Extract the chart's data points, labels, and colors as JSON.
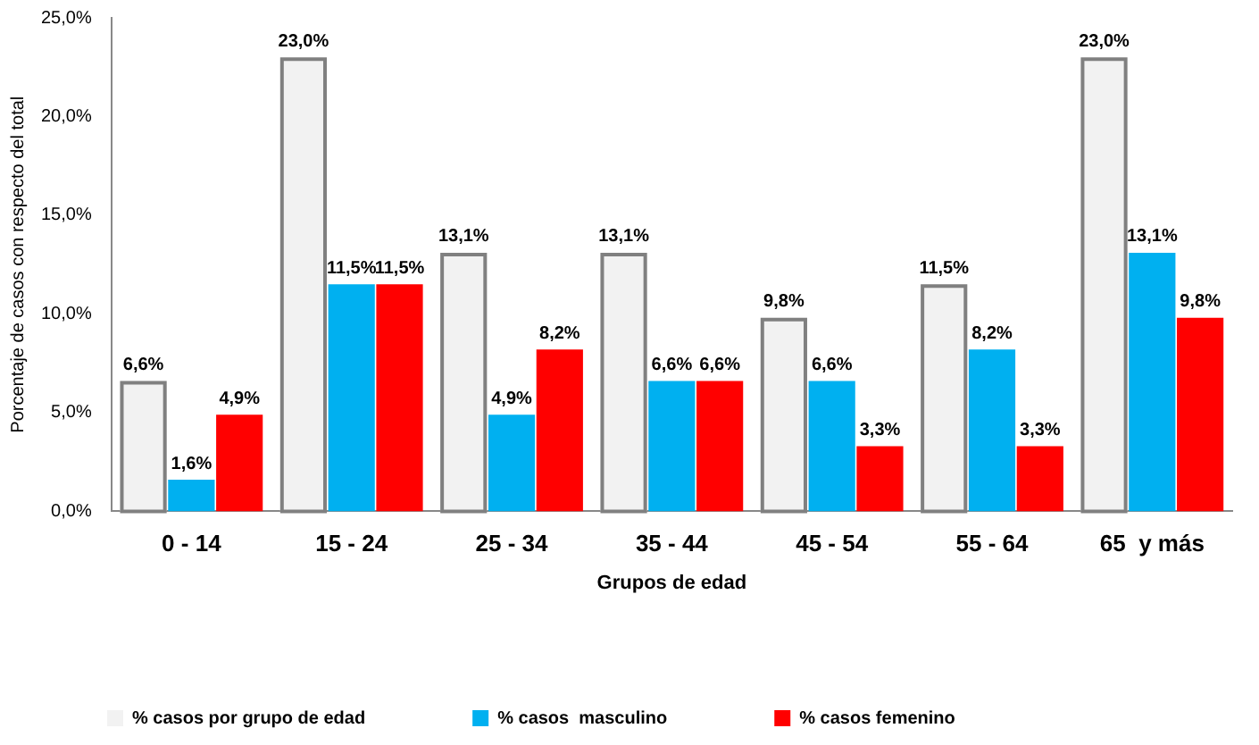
{
  "chart_data": {
    "type": "bar",
    "xlabel": "Grupos de edad",
    "ylabel": "Porcentaje de casos con respecto del total",
    "categories": [
      "0 - 14",
      "15 - 24",
      "25 - 34",
      "35 - 44",
      "45 - 54",
      "55 - 64",
      "65  y más"
    ],
    "series": [
      {
        "name": "% casos por grupo de edad",
        "color": "#f2f2f2",
        "values": [
          6.6,
          23.0,
          13.1,
          13.1,
          9.8,
          11.5,
          23.0
        ],
        "value_labels": [
          "6,6%",
          "23,0%",
          "13,1%",
          "13,1%",
          "9,8%",
          "11,5%",
          "23,0%"
        ]
      },
      {
        "name": "% casos  masculino",
        "color": "#00b0f0",
        "values": [
          1.6,
          11.5,
          4.9,
          6.6,
          6.6,
          8.2,
          13.1
        ],
        "value_labels": [
          "1,6%",
          "11,5%",
          "4,9%",
          "6,6%",
          "6,6%",
          "8,2%",
          "13,1%"
        ]
      },
      {
        "name": "% casos femenino",
        "color": "#ff0000",
        "values": [
          4.9,
          11.5,
          8.2,
          6.6,
          3.3,
          3.3,
          9.8
        ],
        "value_labels": [
          "4,9%",
          "11,5%",
          "8,2%",
          "6,6%",
          "3,3%",
          "3,3%",
          "9,8%"
        ]
      }
    ],
    "ylim": [
      0,
      25
    ],
    "yticks": [
      {
        "value": 0,
        "label": "0,0%"
      },
      {
        "value": 5,
        "label": "5,0%"
      },
      {
        "value": 10,
        "label": "10,0%"
      },
      {
        "value": 15,
        "label": "15,0%"
      },
      {
        "value": 20,
        "label": "20,0%"
      },
      {
        "value": 25,
        "label": "25,0%"
      }
    ],
    "grid": false,
    "legend": "bottom"
  }
}
